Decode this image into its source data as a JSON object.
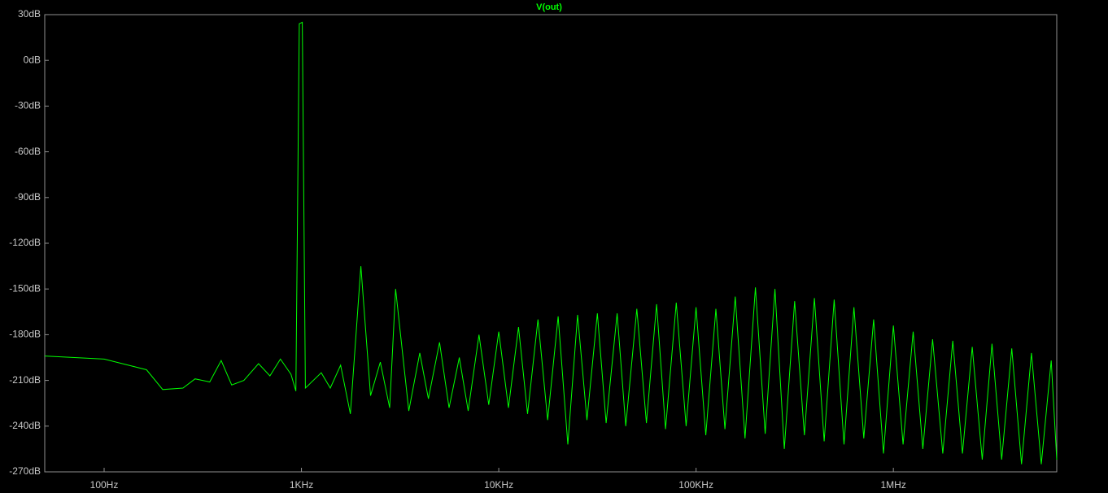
{
  "chart_data": {
    "type": "line",
    "title": "V(out)",
    "color": "#00ff00",
    "xscale": "log",
    "x": [
      50,
      100,
      164,
      198,
      251,
      289,
      343,
      392,
      443,
      511,
      606,
      692,
      782,
      885,
      937,
      975,
      1010,
      1047,
      1260,
      1400,
      1580,
      1770,
      2000,
      2240,
      2510,
      2800,
      3000,
      3500,
      3980,
      4400,
      5010,
      5600,
      6310,
      7000,
      7940,
      8900,
      10000,
      11200,
      12600,
      14000,
      15800,
      17700,
      20000,
      22400,
      25100,
      28000,
      31600,
      35000,
      39800,
      44000,
      50100,
      56000,
      63100,
      70000,
      79400,
      89000,
      100000,
      112000,
      126000,
      140000,
      158000,
      177000,
      200000,
      224000,
      251000,
      280000,
      316000,
      354000,
      398000,
      446000,
      501000,
      562000,
      631000,
      708000,
      794000,
      891000,
      1000000,
      1120000,
      1260000,
      1410000,
      1580000,
      1780000,
      2000000,
      2240000,
      2510000,
      2820000,
      3160000,
      3540000,
      3980000,
      4460000,
      5010000,
      5620000,
      6310000,
      6730000
    ],
    "values": [
      -194,
      -196,
      -203,
      -216,
      -215,
      -209,
      -211,
      -197,
      -213,
      -210,
      -199,
      -207,
      -196,
      -206,
      -217,
      24,
      25,
      -215,
      -205,
      -215,
      -200,
      -232,
      -135,
      -220,
      -198,
      -228,
      -150,
      -230,
      -192,
      -222,
      -185,
      -228,
      -195,
      -230,
      -180,
      -226,
      -178,
      -228,
      -175,
      -232,
      -170,
      -236,
      -168,
      -252,
      -167,
      -236,
      -166,
      -238,
      -166,
      -240,
      -163,
      -238,
      -160,
      -242,
      -159,
      -240,
      -162,
      -246,
      -163,
      -242,
      -155,
      -248,
      -149,
      -245,
      -150,
      -255,
      -158,
      -246,
      -156,
      -250,
      -157,
      -252,
      -162,
      -248,
      -170,
      -258,
      -174,
      -252,
      -178,
      -255,
      -183,
      -258,
      -184,
      -258,
      -188,
      -262,
      -186,
      -262,
      -189,
      -265,
      -192,
      -265,
      -197,
      -262
    ],
    "xlim": [
      50,
      6730000
    ],
    "ylim": [
      -270,
      30
    ],
    "xticks": [
      {
        "value": 100,
        "label": "100Hz"
      },
      {
        "value": 1000,
        "label": "1KHz"
      },
      {
        "value": 10000,
        "label": "10KHz"
      },
      {
        "value": 100000,
        "label": "100KHz"
      },
      {
        "value": 1000000,
        "label": "1MHz"
      }
    ],
    "yticks": [
      {
        "value": 30,
        "label": "30dB"
      },
      {
        "value": 0,
        "label": "0dB"
      },
      {
        "value": -30,
        "label": "-30dB"
      },
      {
        "value": -60,
        "label": "-60dB"
      },
      {
        "value": -90,
        "label": "-90dB"
      },
      {
        "value": -120,
        "label": "-120dB"
      },
      {
        "value": -150,
        "label": "-150dB"
      },
      {
        "value": -180,
        "label": "-180dB"
      },
      {
        "value": -210,
        "label": "-210dB"
      },
      {
        "value": -240,
        "label": "-240dB"
      },
      {
        "value": -270,
        "label": "-270dB"
      }
    ]
  }
}
